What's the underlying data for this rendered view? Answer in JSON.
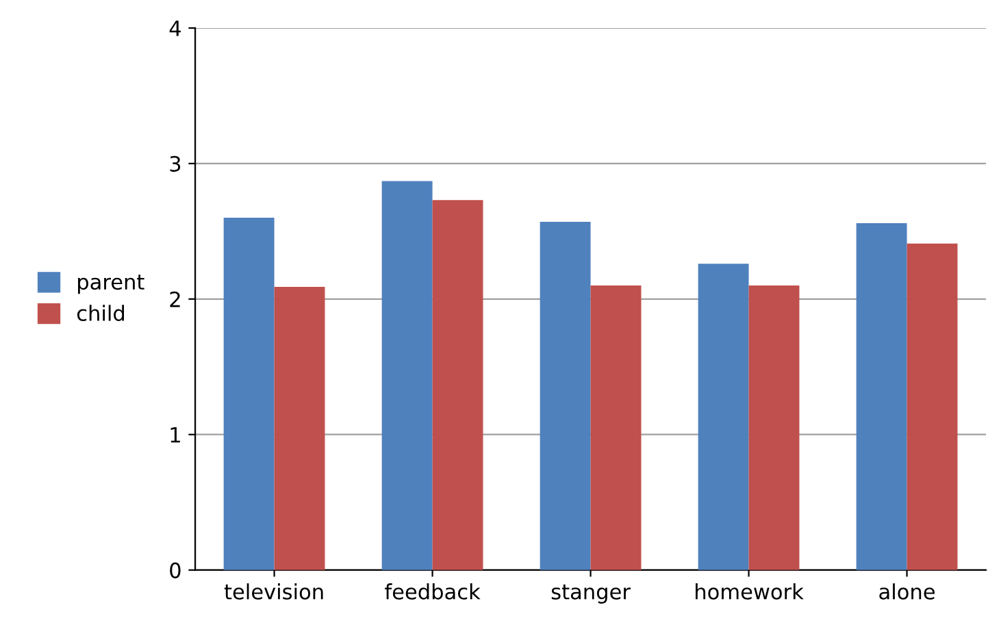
{
  "chart_data": {
    "type": "bar",
    "categories": [
      "television",
      "feedback",
      "stanger",
      "homework",
      "alone"
    ],
    "series": [
      {
        "name": "parent",
        "color": "#4f81bd",
        "values": [
          2.6,
          2.87,
          2.57,
          2.26,
          2.56
        ]
      },
      {
        "name": "child",
        "color": "#c0504d",
        "values": [
          2.09,
          2.73,
          2.1,
          2.1,
          2.41
        ]
      }
    ],
    "ylim": [
      0,
      4
    ],
    "yticks": [
      0,
      1,
      2,
      3,
      4
    ],
    "grid": "y",
    "legend": "left"
  }
}
